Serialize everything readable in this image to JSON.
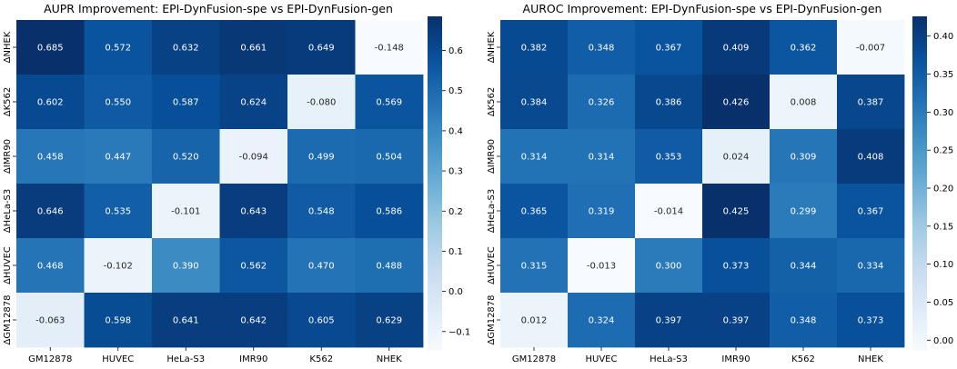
{
  "chart_data": [
    {
      "type": "heatmap",
      "title": "AUPR Improvement: EPI-DynFusion-spe vs EPI-DynFusion-gen",
      "x_categories": [
        "GM12878",
        "HUVEC",
        "HeLa-S3",
        "IMR90",
        "K562",
        "NHEK"
      ],
      "y_categories": [
        "ΔNHEK",
        "ΔK562",
        "ΔIMR90",
        "ΔHeLa-S3",
        "ΔHUVEC",
        "ΔGM12878"
      ],
      "values": [
        [
          0.685,
          0.572,
          0.632,
          0.661,
          0.649,
          -0.148
        ],
        [
          0.602,
          0.55,
          0.587,
          0.624,
          -0.08,
          0.569
        ],
        [
          0.458,
          0.447,
          0.52,
          -0.094,
          0.499,
          0.504
        ],
        [
          0.646,
          0.535,
          -0.101,
          0.643,
          0.548,
          0.586
        ],
        [
          0.468,
          -0.102,
          0.39,
          0.562,
          0.47,
          0.488
        ],
        [
          -0.063,
          0.598,
          0.641,
          0.642,
          0.605,
          0.629
        ]
      ],
      "colorbar": {
        "vmin": -0.148,
        "vmax": 0.685,
        "ticks": [
          -0.1,
          0.0,
          0.1,
          0.2,
          0.3,
          0.4,
          0.5,
          0.6
        ],
        "tick_labels": [
          "−0.1",
          "0.0",
          "0.1",
          "0.2",
          "0.3",
          "0.4",
          "0.5",
          "0.6"
        ],
        "colormap": "Blues"
      }
    },
    {
      "type": "heatmap",
      "title": "AUROC Improvement: EPI-DynFusion-spe vs EPI-DynFusion-gen",
      "x_categories": [
        "GM12878",
        "HUVEC",
        "HeLa-S3",
        "IMR90",
        "K562",
        "NHEK"
      ],
      "y_categories": [
        "ΔNHEK",
        "ΔK562",
        "ΔIMR90",
        "ΔHeLa-S3",
        "ΔHUVEC",
        "ΔGM12878"
      ],
      "values": [
        [
          0.382,
          0.348,
          0.367,
          0.409,
          0.362,
          -0.007
        ],
        [
          0.384,
          0.326,
          0.386,
          0.426,
          0.008,
          0.387
        ],
        [
          0.314,
          0.314,
          0.353,
          0.024,
          0.309,
          0.408
        ],
        [
          0.365,
          0.319,
          -0.014,
          0.425,
          0.299,
          0.367
        ],
        [
          0.315,
          -0.013,
          0.3,
          0.373,
          0.344,
          0.334
        ],
        [
          0.012,
          0.324,
          0.397,
          0.397,
          0.348,
          0.373
        ]
      ],
      "colorbar": {
        "vmin": -0.014,
        "vmax": 0.426,
        "ticks": [
          0.0,
          0.05,
          0.1,
          0.15,
          0.2,
          0.25,
          0.3,
          0.35,
          0.4
        ],
        "tick_labels": [
          "0.00",
          "0.05",
          "0.10",
          "0.15",
          "0.20",
          "0.25",
          "0.30",
          "0.35",
          "0.40"
        ],
        "colormap": "Blues"
      }
    }
  ]
}
